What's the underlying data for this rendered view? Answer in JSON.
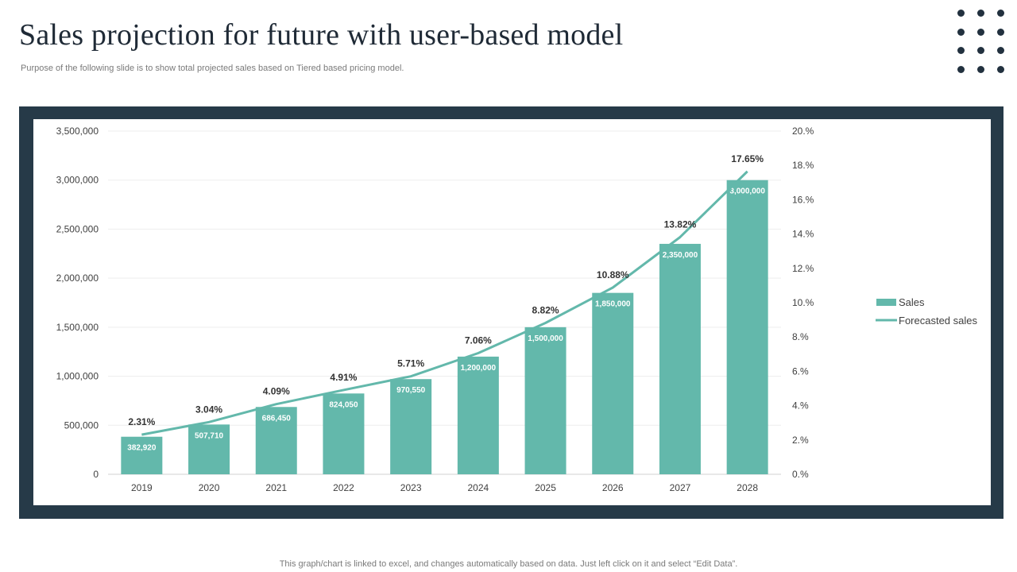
{
  "slide": {
    "title": "Sales projection for future with user-based model",
    "subtitle": "Purpose of the following slide is to show total projected sales based on Tiered based pricing model.",
    "footnote": "This graph/chart is linked to excel,  and changes automatically based on data. Just left click on it and select “Edit Data”."
  },
  "colors": {
    "frame": "#263a48",
    "bar": "#63b8ab",
    "line": "#63b8ab",
    "dots": "#22313f"
  },
  "chart_data": {
    "type": "bar",
    "categories": [
      "2019",
      "2020",
      "2021",
      "2022",
      "2023",
      "2024",
      "2025",
      "2026",
      "2027",
      "2028"
    ],
    "series": [
      {
        "name": "Sales",
        "type": "bar",
        "axis": "left",
        "values": [
          382920,
          507710,
          686450,
          824050,
          970550,
          1200000,
          1500000,
          1850000,
          2350000,
          3000000
        ],
        "labels": [
          "382,920",
          "507,710",
          "686,450",
          "824,050",
          "970,550",
          "1,200,000",
          "1,500,000",
          "1,850,000",
          "2,350,000",
          "3,000,000"
        ]
      },
      {
        "name": "Forecasted sales",
        "type": "line",
        "axis": "right",
        "values": [
          2.31,
          3.04,
          4.09,
          4.91,
          5.71,
          7.06,
          8.82,
          10.88,
          13.82,
          17.65
        ],
        "labels": [
          "2.31%",
          "3.04%",
          "4.09%",
          "4.91%",
          "5.71%",
          "7.06%",
          "8.82%",
          "10.88%",
          "13.82%",
          "17.65%"
        ]
      }
    ],
    "y_left": {
      "range": [
        0,
        3500000
      ],
      "ticks": [
        0,
        500000,
        1000000,
        1500000,
        2000000,
        2500000,
        3000000,
        3500000
      ],
      "tick_labels": [
        "0",
        "500,000",
        "1,000,000",
        "1,500,000",
        "2,000,000",
        "2,500,000",
        "3,000,000",
        "3,500,000"
      ]
    },
    "y_right": {
      "range": [
        0,
        20
      ],
      "ticks": [
        0,
        2,
        4,
        6,
        8,
        10,
        12,
        14,
        16,
        18,
        20
      ],
      "tick_labels": [
        "0.%",
        "2.%",
        "4.%",
        "6.%",
        "8.%",
        "10.%",
        "12.%",
        "14.%",
        "16.%",
        "18.%",
        "20.%"
      ]
    },
    "grid": true,
    "legend": "right"
  }
}
